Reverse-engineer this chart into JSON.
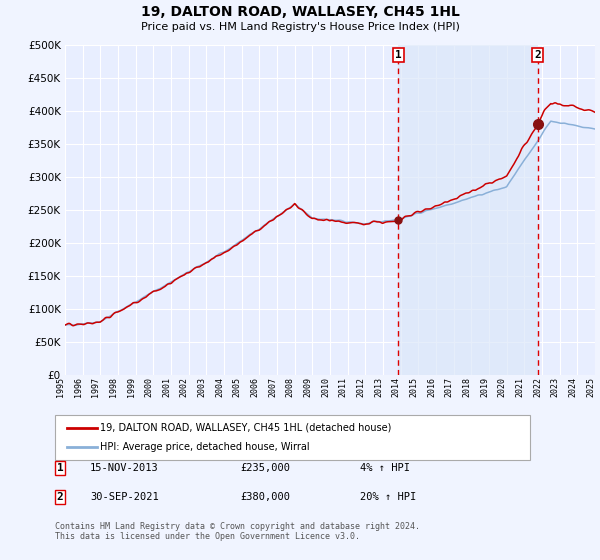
{
  "title": "19, DALTON ROAD, WALLASEY, CH45 1HL",
  "subtitle": "Price paid vs. HM Land Registry's House Price Index (HPI)",
  "background_color": "#f0f4ff",
  "plot_bg_color": "#e8eeff",
  "grid_color": "#ffffff",
  "shade_color": "#dce8f8",
  "ylim": [
    0,
    500000
  ],
  "yticks": [
    0,
    50000,
    100000,
    150000,
    200000,
    250000,
    300000,
    350000,
    400000,
    450000,
    500000
  ],
  "ytick_labels": [
    "£0",
    "£50K",
    "£100K",
    "£150K",
    "£200K",
    "£250K",
    "£300K",
    "£350K",
    "£400K",
    "£450K",
    "£500K"
  ],
  "year_start": 1995,
  "year_end": 2025,
  "transaction1_date": 2013.87,
  "transaction1_price": 235000,
  "transaction2_date": 2021.75,
  "transaction2_price": 380000,
  "legend_line1": "19, DALTON ROAD, WALLASEY, CH45 1HL (detached house)",
  "legend_line2": "HPI: Average price, detached house, Wirral",
  "footer": "Contains HM Land Registry data © Crown copyright and database right 2024.\nThis data is licensed under the Open Government Licence v3.0.",
  "hpi_color": "#8ab0d8",
  "price_color": "#cc0000",
  "vline_color": "#dd0000",
  "marker_color": "#881111"
}
